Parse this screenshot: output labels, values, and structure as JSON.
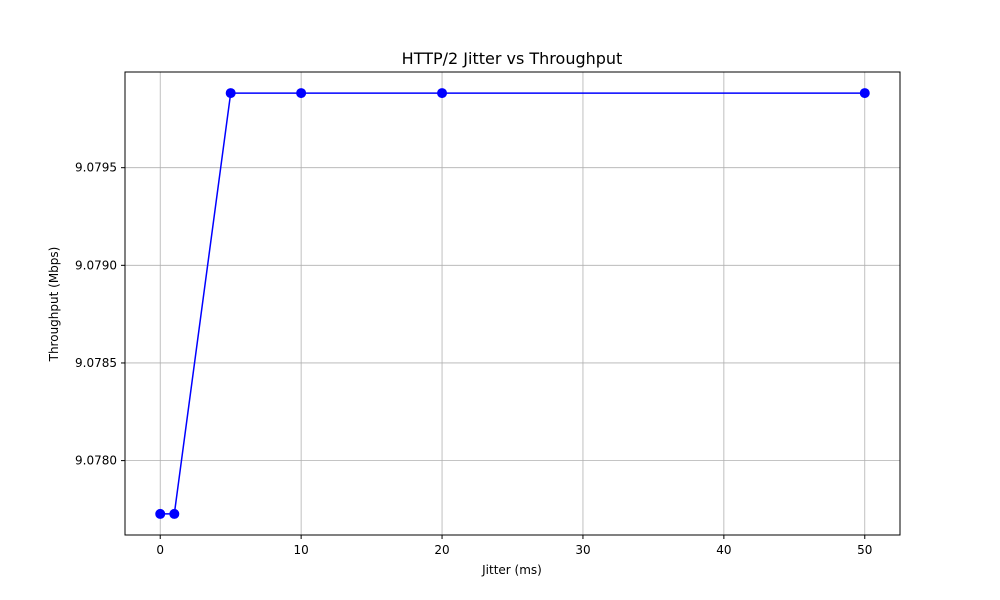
{
  "chart_data": {
    "type": "line",
    "title": "HTTP/2 Jitter vs Throughput",
    "xlabel": "Jitter (ms)",
    "ylabel": "Throughput (Mbps)",
    "x": [
      0,
      1,
      5,
      10,
      20,
      50
    ],
    "series": [
      {
        "values": [
          9.077727,
          9.077727,
          9.079882,
          9.079882,
          9.079882,
          9.079882
        ]
      }
    ],
    "xlim": [
      -2.5,
      52.5
    ],
    "ylim": [
      9.077619,
      9.07999
    ],
    "x_ticks": [
      0,
      10,
      20,
      30,
      40,
      50
    ],
    "x_tick_labels": [
      "0",
      "10",
      "20",
      "30",
      "40",
      "50"
    ],
    "y_ticks": [
      9.078,
      9.0785,
      9.079,
      9.0795
    ],
    "y_tick_labels": [
      "9.0780",
      "9.0785",
      "9.0790",
      "9.0795"
    ],
    "grid": true,
    "colors": {
      "line": "#0000ff",
      "marker": "#0000ff",
      "grid": "#b0b0b0"
    }
  }
}
